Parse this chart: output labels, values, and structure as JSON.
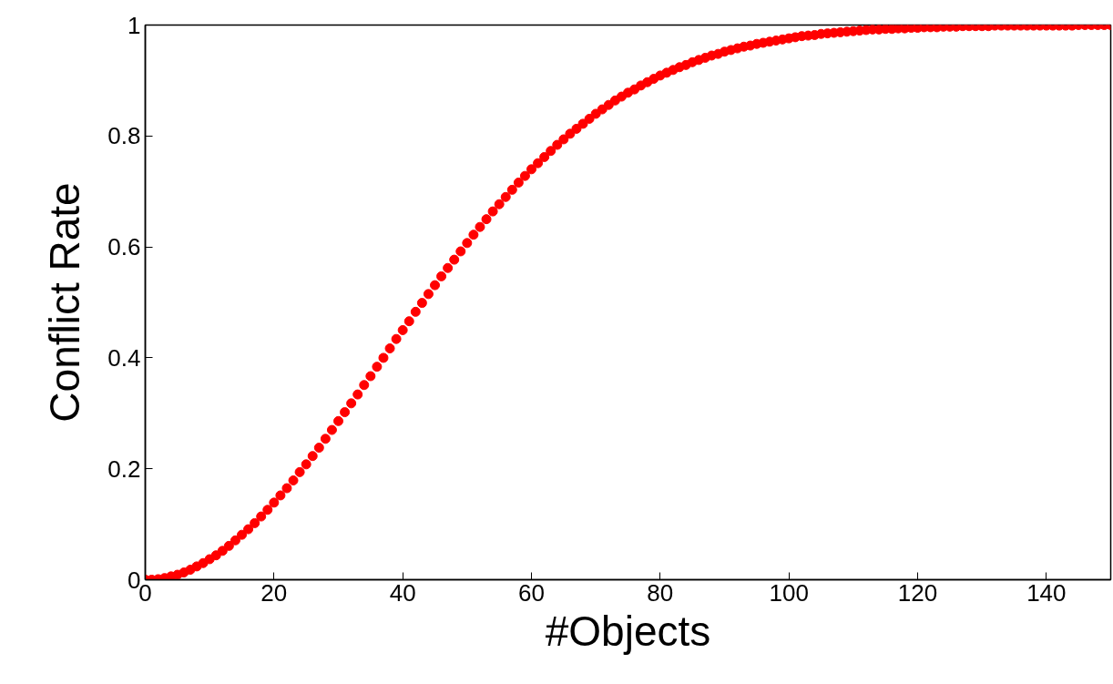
{
  "chart_data": {
    "type": "scatter",
    "xlabel": "#Objects",
    "ylabel": "Conflict Rate",
    "x": [
      0,
      1,
      2,
      3,
      4,
      5,
      6,
      7,
      8,
      9,
      10,
      11,
      12,
      13,
      14,
      15,
      16,
      17,
      18,
      19,
      20,
      21,
      22,
      23,
      24,
      25,
      26,
      27,
      28,
      29,
      30,
      31,
      32,
      33,
      34,
      35,
      36,
      37,
      38,
      39,
      40,
      41,
      42,
      43,
      44,
      45,
      46,
      47,
      48,
      49,
      50,
      51,
      52,
      53,
      54,
      55,
      56,
      57,
      58,
      59,
      60,
      61,
      62,
      63,
      64,
      65,
      66,
      67,
      68,
      69,
      70,
      71,
      72,
      73,
      74,
      75,
      76,
      77,
      78,
      79,
      80,
      81,
      82,
      83,
      84,
      85,
      86,
      87,
      88,
      89,
      90,
      91,
      92,
      93,
      94,
      95,
      96,
      97,
      98,
      99,
      100,
      101,
      102,
      103,
      104,
      105,
      106,
      107,
      108,
      109,
      110,
      111,
      112,
      113,
      114,
      115,
      116,
      117,
      118,
      119,
      120,
      121,
      122,
      123,
      124,
      125,
      126,
      127,
      128,
      129,
      130,
      131,
      132,
      133,
      134,
      135,
      136,
      137,
      138,
      139,
      140,
      141,
      142,
      143,
      144,
      145,
      146,
      147,
      148,
      149,
      150
    ],
    "series": [
      {
        "color": "#ff0000",
        "values": [
          0.0,
          0.0,
          0.001,
          0.003,
          0.006,
          0.009,
          0.013,
          0.018,
          0.024,
          0.03,
          0.037,
          0.044,
          0.052,
          0.061,
          0.071,
          0.081,
          0.091,
          0.102,
          0.114,
          0.126,
          0.139,
          0.152,
          0.165,
          0.179,
          0.194,
          0.208,
          0.223,
          0.238,
          0.254,
          0.27,
          0.286,
          0.302,
          0.318,
          0.334,
          0.351,
          0.367,
          0.384,
          0.4,
          0.417,
          0.434,
          0.45,
          0.466,
          0.483,
          0.499,
          0.515,
          0.531,
          0.547,
          0.562,
          0.577,
          0.592,
          0.607,
          0.622,
          0.636,
          0.65,
          0.664,
          0.677,
          0.69,
          0.703,
          0.716,
          0.728,
          0.74,
          0.751,
          0.762,
          0.773,
          0.784,
          0.794,
          0.804,
          0.813,
          0.822,
          0.831,
          0.84,
          0.848,
          0.856,
          0.864,
          0.871,
          0.878,
          0.884,
          0.891,
          0.897,
          0.903,
          0.909,
          0.914,
          0.919,
          0.924,
          0.928,
          0.933,
          0.937,
          0.941,
          0.945,
          0.948,
          0.952,
          0.955,
          0.958,
          0.961,
          0.963,
          0.966,
          0.968,
          0.97,
          0.972,
          0.974,
          0.976,
          0.978,
          0.98,
          0.981,
          0.982,
          0.984,
          0.985,
          0.986,
          0.987,
          0.988,
          0.989,
          0.99,
          0.991,
          0.992,
          0.992,
          0.993,
          0.993,
          0.994,
          0.994,
          0.995,
          0.995,
          0.996,
          0.996,
          0.996,
          0.997,
          0.997,
          0.997,
          0.998,
          0.998,
          0.998,
          0.998,
          0.998,
          0.999,
          0.999,
          0.999,
          0.999,
          0.999,
          0.999,
          0.999,
          0.999,
          0.999,
          0.999,
          0.999,
          0.999,
          0.999,
          1.0,
          1.0,
          1.0,
          1.0,
          1.0,
          1.0
        ]
      }
    ],
    "xlim": [
      0,
      150
    ],
    "ylim": [
      0,
      1
    ],
    "xticks": [
      0,
      20,
      40,
      60,
      80,
      100,
      120,
      140
    ],
    "yticks": [
      0,
      {
        "value": 0.2,
        "label": "0.2"
      },
      {
        "value": 0.4,
        "label": "0.4"
      },
      {
        "value": 0.6,
        "label": "0.6"
      },
      {
        "value": 0.8,
        "label": "0.8"
      },
      1
    ],
    "marker": "circle",
    "grid": false
  }
}
